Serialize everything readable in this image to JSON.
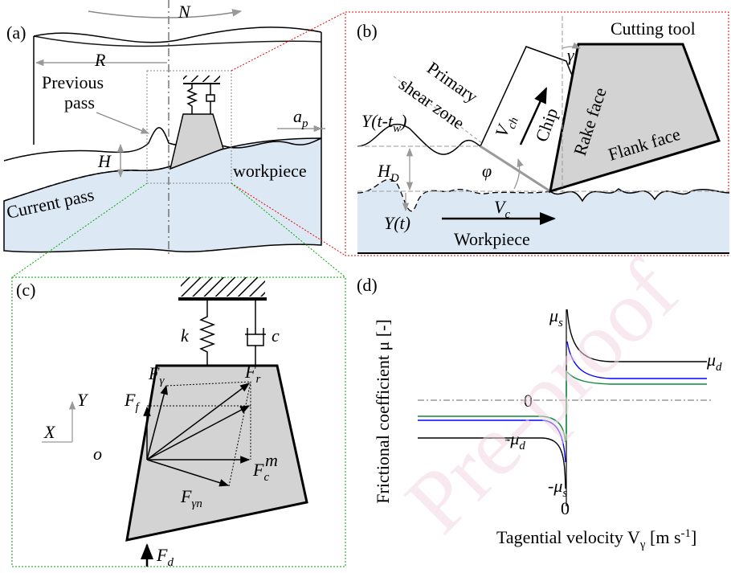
{
  "panel_a": {
    "label": "(a)",
    "rotation": "N",
    "radius": "R",
    "previous_pass": [
      "Previous",
      "pass"
    ],
    "depth": "H",
    "feed": {
      "base": "a",
      "sub": "p"
    },
    "workpiece": "workpiece",
    "current_pass": "Current pass"
  },
  "panel_b": {
    "label": "(b)",
    "cutting_tool": "Cutting tool",
    "rake_angle": "γ",
    "shear_zone": [
      "Primary",
      "shear zone"
    ],
    "previous_surface": {
      "base": "Y(t-t",
      "sub": "w",
      "tail": ")"
    },
    "chip_velocity": {
      "base": "V",
      "sub": "ch"
    },
    "chip": "Chip",
    "rake_face": "Rake face",
    "flank_face": "Flank face",
    "chip_thickness": {
      "base": "H",
      "sub": "D"
    },
    "shear_angle": "φ",
    "current_surface": "Y(t)",
    "cutting_velocity": {
      "base": "V",
      "sub": "c"
    },
    "workpiece": "Workpiece"
  },
  "panel_c": {
    "label": "(c)",
    "stiffness": "k",
    "damping": "c",
    "rake_force": {
      "base": "F",
      "sub": "γ"
    },
    "resultant_force": {
      "base": "F",
      "sub": "r"
    },
    "feed_force": {
      "base": "F",
      "sub": "f"
    },
    "axis_y": "Y",
    "axis_x": "X",
    "origin": "o",
    "cutting_force": {
      "base": "F",
      "sub": "c"
    },
    "mass": "m",
    "normal_force": {
      "base": "F",
      "sub": "γn"
    },
    "disturbance_force": {
      "base": "F",
      "sub": "d"
    }
  },
  "panel_d": {
    "label": "(d)",
    "y_label": "Frictional coefficient μ [-]",
    "x_label": {
      "base": "Tagential velocity V",
      "sub": "γ",
      "mid": " [m s",
      "sup": "-1",
      "tail": "]"
    },
    "static_pos": {
      "base": "μ",
      "sub": "s"
    },
    "dynamic_pos": {
      "base": "μ",
      "sub": "d"
    },
    "zero_y": "0",
    "dynamic_neg": {
      "base": "-μ",
      "sub": "d"
    },
    "static_neg": {
      "base": "-μ",
      "sub": "s"
    },
    "zero_x": "0"
  },
  "watermark": "Pre-proof"
}
